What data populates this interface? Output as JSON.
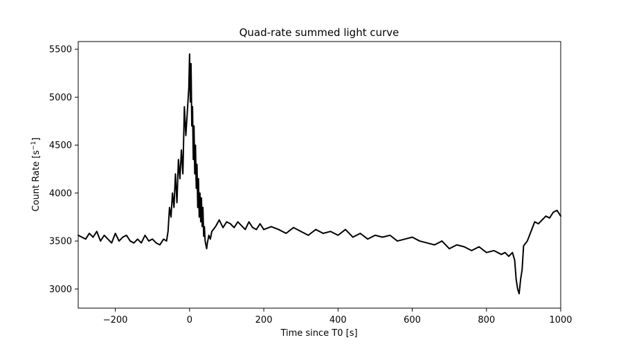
{
  "chart_data": {
    "type": "line",
    "title": "Quad-rate summed light curve",
    "xlabel": "Time since T0 [s]",
    "ylabel_main": "Count Rate [s",
    "ylabel_sup": "−1",
    "ylabel_close": "]",
    "xlim": [
      -300,
      1000
    ],
    "ylim": [
      2800,
      5580
    ],
    "xticks": [
      -200,
      0,
      200,
      400,
      600,
      800,
      1000
    ],
    "xtick_labels": [
      "−200",
      "0",
      "200",
      "400",
      "600",
      "800",
      "1000"
    ],
    "yticks": [
      3000,
      3500,
      4000,
      4500,
      5000,
      5500
    ],
    "ytick_labels": [
      "3000",
      "3500",
      "4000",
      "4500",
      "5000",
      "5500"
    ],
    "grid": false,
    "line_color": "#000000",
    "series": [
      {
        "x": [
          -300,
          -290,
          -280,
          -270,
          -260,
          -250,
          -240,
          -230,
          -220,
          -210,
          -200,
          -190,
          -180,
          -170,
          -160,
          -150,
          -140,
          -130,
          -120,
          -110,
          -100,
          -90,
          -80,
          -70,
          -62,
          -58,
          -54,
          -50,
          -46,
          -42,
          -38,
          -34,
          -30,
          -26,
          -22,
          -18,
          -14,
          -10,
          -6,
          -2,
          0,
          2,
          4,
          6,
          8,
          10,
          12,
          14,
          16,
          18,
          20,
          22,
          24,
          26,
          28,
          30,
          32,
          34,
          36,
          38,
          40,
          42,
          44,
          46,
          48,
          52,
          56,
          60,
          70,
          80,
          90,
          100,
          110,
          120,
          130,
          140,
          150,
          160,
          170,
          180,
          190,
          200,
          220,
          240,
          260,
          280,
          300,
          320,
          340,
          360,
          380,
          400,
          420,
          440,
          460,
          480,
          500,
          520,
          540,
          560,
          580,
          600,
          620,
          640,
          660,
          680,
          700,
          720,
          740,
          760,
          780,
          800,
          820,
          840,
          850,
          860,
          870,
          876,
          880,
          884,
          888,
          892,
          896,
          900,
          910,
          920,
          930,
          940,
          950,
          960,
          970,
          980,
          990,
          1000
        ],
        "y": [
          3560,
          3540,
          3520,
          3580,
          3540,
          3600,
          3500,
          3560,
          3520,
          3480,
          3580,
          3500,
          3540,
          3560,
          3500,
          3480,
          3520,
          3480,
          3560,
          3500,
          3520,
          3480,
          3460,
          3520,
          3500,
          3600,
          3850,
          3750,
          4000,
          3850,
          4200,
          3900,
          4350,
          4150,
          4450,
          4200,
          4900,
          4600,
          4850,
          5100,
          5450,
          4950,
          5350,
          4700,
          4900,
          4350,
          4700,
          4200,
          4500,
          4050,
          4300,
          3850,
          4150,
          3750,
          4000,
          3700,
          3950,
          3650,
          3850,
          3550,
          3650,
          3500,
          3460,
          3420,
          3480,
          3560,
          3520,
          3600,
          3650,
          3720,
          3640,
          3700,
          3680,
          3640,
          3700,
          3660,
          3620,
          3700,
          3640,
          3620,
          3680,
          3620,
          3650,
          3620,
          3580,
          3640,
          3600,
          3560,
          3620,
          3580,
          3600,
          3560,
          3620,
          3540,
          3580,
          3520,
          3560,
          3540,
          3560,
          3500,
          3520,
          3540,
          3500,
          3480,
          3460,
          3500,
          3420,
          3460,
          3440,
          3400,
          3440,
          3380,
          3400,
          3360,
          3380,
          3340,
          3380,
          3300,
          3100,
          3000,
          2950,
          3100,
          3200,
          3450,
          3500,
          3600,
          3700,
          3680,
          3720,
          3760,
          3740,
          3800,
          3820,
          3760
        ]
      }
    ]
  }
}
